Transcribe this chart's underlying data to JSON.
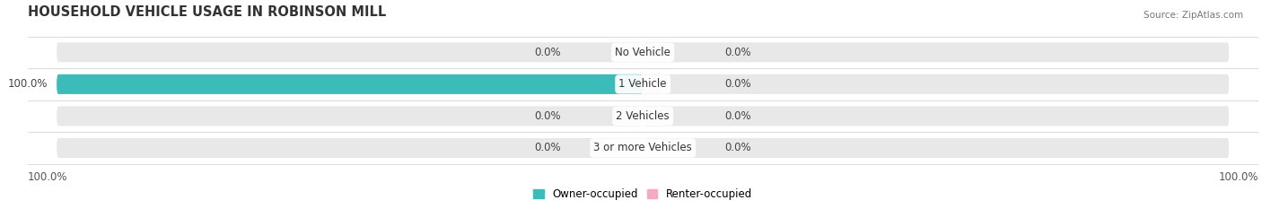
{
  "title": "HOUSEHOLD VEHICLE USAGE IN ROBINSON MILL",
  "source": "Source: ZipAtlas.com",
  "categories": [
    "No Vehicle",
    "1 Vehicle",
    "2 Vehicles",
    "3 or more Vehicles"
  ],
  "owner_values": [
    0.0,
    100.0,
    0.0,
    0.0
  ],
  "renter_values": [
    0.0,
    0.0,
    0.0,
    0.0
  ],
  "owner_color": "#3bbcb8",
  "renter_color": "#f7a8c4",
  "bar_bg_color": "#e8e8e8",
  "bar_height": 0.62,
  "bar_max": 100,
  "title_fontsize": 10.5,
  "label_fontsize": 8.5,
  "tick_fontsize": 8.5,
  "source_fontsize": 7.5,
  "legend_fontsize": 8.5,
  "figsize": [
    14.06,
    2.33
  ],
  "dpi": 100,
  "bg_color": "#f5f5f5",
  "fig_bg_color": "#ffffff"
}
